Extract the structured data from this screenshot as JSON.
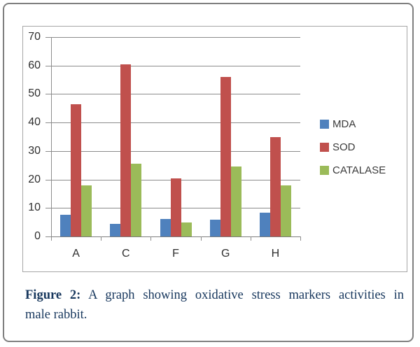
{
  "figure": {
    "caption_label": "Figure 2:",
    "caption_line1_rest": " A graph showing oxidative stress markers activities in",
    "caption_line2": "male rabbit.",
    "caption_color": "#17375d"
  },
  "chart_data": {
    "type": "bar",
    "title": "",
    "xlabel": "",
    "ylabel": "",
    "categories": [
      "A",
      "C",
      "F",
      "G",
      "H"
    ],
    "series": [
      {
        "name": "MDA",
        "color": "#4f81bd",
        "values": [
          7.6,
          4.5,
          6.2,
          6.0,
          8.3
        ]
      },
      {
        "name": "SOD",
        "color": "#c0504d",
        "values": [
          46.5,
          60.5,
          20.5,
          56.0,
          35.0
        ]
      },
      {
        "name": "CATALASE",
        "color": "#9bbb59",
        "values": [
          18.0,
          25.5,
          5.0,
          24.5,
          18.0
        ]
      }
    ],
    "ylim": [
      0,
      70
    ],
    "yticks": [
      0,
      10,
      20,
      30,
      40,
      50,
      60,
      70
    ],
    "grid": true,
    "legend_position": "right"
  },
  "colors": {
    "outer_border": "#7f7f7f",
    "inner_border": "#a6a6a6",
    "gridline": "#8c8c8c",
    "axis_text": "#2f2f2f",
    "background": "#ffffff"
  }
}
